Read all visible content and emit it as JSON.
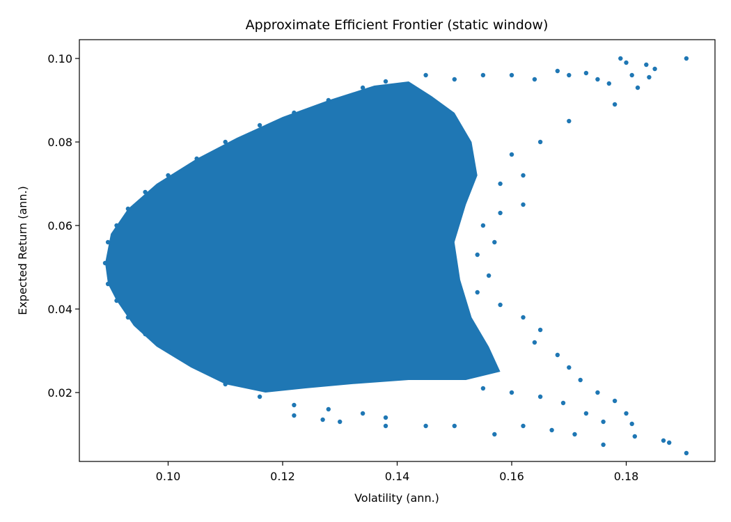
{
  "chart_data": {
    "type": "scatter",
    "title": "Approximate Efficient Frontier (static window)",
    "xlabel": "Volatility (ann.)",
    "ylabel": "Expected Return (ann.)",
    "xlim": [
      0.0845,
      0.1955
    ],
    "ylim": [
      0.0035,
      0.1045
    ],
    "xticks": [
      0.1,
      0.12,
      0.14,
      0.16,
      0.18
    ],
    "xtick_labels": [
      "0.10",
      "0.12",
      "0.14",
      "0.16",
      "0.18"
    ],
    "yticks": [
      0.02,
      0.04,
      0.06,
      0.08,
      0.1
    ],
    "ytick_labels": [
      "0.02",
      "0.04",
      "0.06",
      "0.08",
      "0.10"
    ],
    "grid": false,
    "legend": "none",
    "series": [
      {
        "color": "#1f77b4",
        "points": [
          [
            0.089,
            0.051
          ],
          [
            0.0895,
            0.056
          ],
          [
            0.0895,
            0.046
          ],
          [
            0.091,
            0.06
          ],
          [
            0.091,
            0.042
          ],
          [
            0.093,
            0.064
          ],
          [
            0.093,
            0.038
          ],
          [
            0.096,
            0.068
          ],
          [
            0.096,
            0.034
          ],
          [
            0.1,
            0.072
          ],
          [
            0.1,
            0.03
          ],
          [
            0.105,
            0.076
          ],
          [
            0.105,
            0.026
          ],
          [
            0.11,
            0.08
          ],
          [
            0.11,
            0.022
          ],
          [
            0.116,
            0.084
          ],
          [
            0.116,
            0.019
          ],
          [
            0.122,
            0.087
          ],
          [
            0.122,
            0.017
          ],
          [
            0.128,
            0.09
          ],
          [
            0.128,
            0.016
          ],
          [
            0.134,
            0.093
          ],
          [
            0.134,
            0.015
          ],
          [
            0.138,
            0.0945
          ],
          [
            0.138,
            0.014
          ],
          [
            0.145,
            0.096
          ],
          [
            0.15,
            0.095
          ],
          [
            0.155,
            0.096
          ],
          [
            0.16,
            0.096
          ],
          [
            0.164,
            0.095
          ],
          [
            0.168,
            0.097
          ],
          [
            0.17,
            0.096
          ],
          [
            0.173,
            0.0965
          ],
          [
            0.175,
            0.095
          ],
          [
            0.177,
            0.094
          ],
          [
            0.179,
            0.1
          ],
          [
            0.18,
            0.099
          ],
          [
            0.181,
            0.096
          ],
          [
            0.182,
            0.093
          ],
          [
            0.1835,
            0.0985
          ],
          [
            0.184,
            0.0955
          ],
          [
            0.185,
            0.0975
          ],
          [
            0.1905,
            0.1
          ],
          [
            0.178,
            0.089
          ],
          [
            0.17,
            0.085
          ],
          [
            0.165,
            0.08
          ],
          [
            0.16,
            0.077
          ],
          [
            0.162,
            0.072
          ],
          [
            0.158,
            0.07
          ],
          [
            0.162,
            0.065
          ],
          [
            0.158,
            0.063
          ],
          [
            0.155,
            0.06
          ],
          [
            0.157,
            0.056
          ],
          [
            0.154,
            0.053
          ],
          [
            0.156,
            0.048
          ],
          [
            0.154,
            0.044
          ],
          [
            0.158,
            0.041
          ],
          [
            0.162,
            0.038
          ],
          [
            0.165,
            0.035
          ],
          [
            0.164,
            0.032
          ],
          [
            0.168,
            0.029
          ],
          [
            0.17,
            0.026
          ],
          [
            0.172,
            0.023
          ],
          [
            0.175,
            0.02
          ],
          [
            0.178,
            0.018
          ],
          [
            0.18,
            0.015
          ],
          [
            0.181,
            0.0125
          ],
          [
            0.1815,
            0.0095
          ],
          [
            0.1865,
            0.0085
          ],
          [
            0.1875,
            0.008
          ],
          [
            0.1905,
            0.0055
          ],
          [
            0.176,
            0.0075
          ],
          [
            0.171,
            0.01
          ],
          [
            0.167,
            0.011
          ],
          [
            0.162,
            0.012
          ],
          [
            0.157,
            0.01
          ],
          [
            0.15,
            0.012
          ],
          [
            0.145,
            0.012
          ],
          [
            0.138,
            0.012
          ],
          [
            0.13,
            0.013
          ],
          [
            0.127,
            0.0135
          ],
          [
            0.122,
            0.0145
          ],
          [
            0.176,
            0.013
          ],
          [
            0.173,
            0.015
          ],
          [
            0.169,
            0.0175
          ],
          [
            0.165,
            0.019
          ],
          [
            0.16,
            0.02
          ],
          [
            0.155,
            0.021
          ]
        ]
      }
    ]
  }
}
